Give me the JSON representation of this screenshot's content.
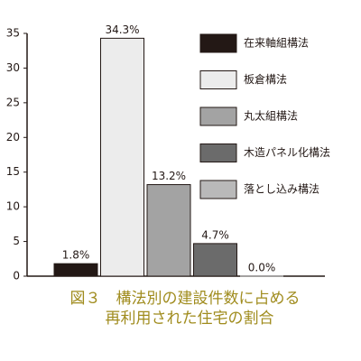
{
  "chart_data": {
    "type": "bar",
    "title_lines": [
      "図３　構法別の建設件数に占める",
      "再利用された住宅の割合"
    ],
    "categories": [
      "在来軸組構法",
      "板倉構法",
      "丸太組構法",
      "木造パネル化構法",
      "落とし込み構法"
    ],
    "values": [
      1.8,
      34.3,
      13.2,
      4.7,
      0.0
    ],
    "value_labels": [
      "1.8%",
      "34.3%",
      "13.2%",
      "4.7%",
      "0.0%"
    ],
    "colors": [
      "#231815",
      "#ececec",
      "#a3a3a3",
      "#6b6b6b",
      "#b9b9b9"
    ],
    "ylim": [
      0,
      35
    ],
    "yticks": [
      0,
      5,
      10,
      15,
      20,
      25,
      30,
      35
    ],
    "legend": "upper right"
  }
}
